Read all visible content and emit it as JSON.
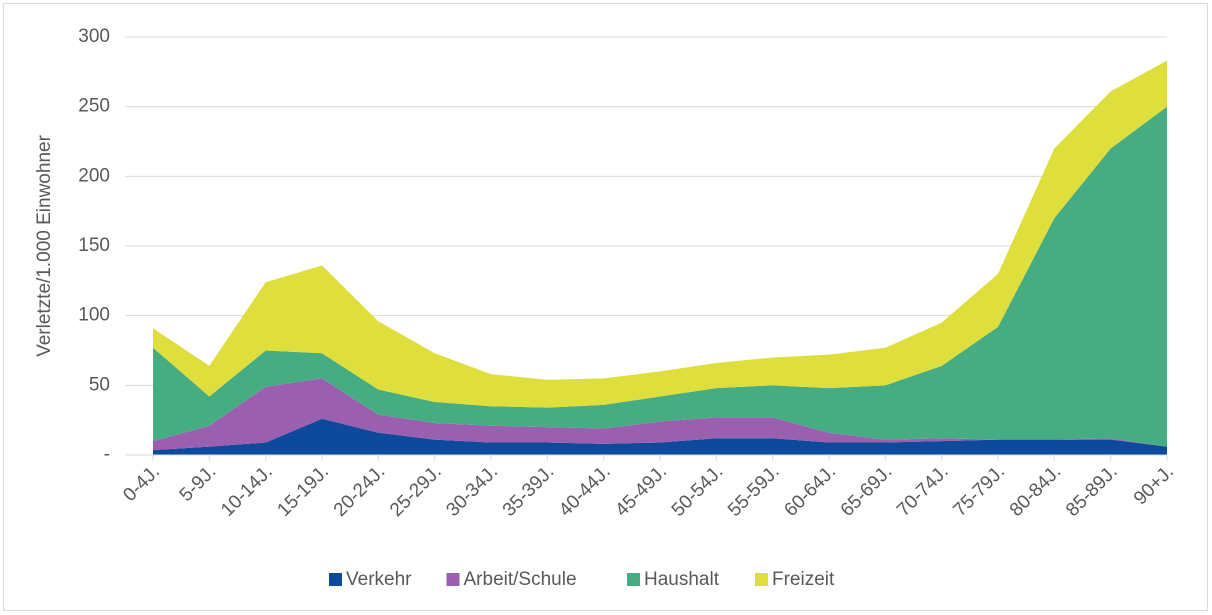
{
  "chart_data": {
    "type": "stacked_area",
    "y_label": "Verletzte/1.000 Einwohner",
    "categories": [
      "0-4J.",
      "5-9J.",
      "10-14J.",
      "15-19J.",
      "20-24J.",
      "25-29J.",
      "30-34J.",
      "35-39J.",
      "40-44J.",
      "45-49J.",
      "50-54J.",
      "55-59J.",
      "60-64J.",
      "65-69J.",
      "70-74J.",
      "75-79J.",
      "80-84J.",
      "85-89J.",
      "90+J."
    ],
    "series": [
      {
        "name": "Verkehr",
        "color": "#0d4a9c",
        "values": [
          3.5,
          6,
          9,
          26,
          16,
          11,
          9,
          9,
          8,
          9,
          12,
          12,
          9,
          9,
          10,
          11,
          11,
          11,
          6
        ]
      },
      {
        "name": "Arbeit/Schule",
        "color": "#9b5fb0",
        "values": [
          6.5,
          15,
          40,
          29,
          13,
          12,
          12,
          11,
          11,
          15,
          15,
          15,
          7,
          2,
          2,
          0,
          0,
          1,
          0
        ]
      },
      {
        "name": "Haushalt",
        "color": "#46ad83",
        "values": [
          67,
          21,
          26,
          18,
          18,
          15,
          14,
          14,
          17,
          18,
          21,
          23,
          32,
          39,
          52,
          81,
          159,
          208,
          244
        ]
      },
      {
        "name": "Freizeit",
        "color": "#dede3c",
        "values": [
          14,
          22,
          49,
          63,
          49,
          35,
          23,
          20,
          19,
          18,
          18,
          20,
          24,
          27,
          31,
          38,
          50,
          41,
          33
        ]
      }
    ],
    "ylim": [
      0,
      300
    ],
    "yticks": [
      {
        "value": 0,
        "label": "-"
      },
      50,
      100,
      150,
      200,
      250,
      300
    ],
    "grid": true,
    "legend": "bottom"
  }
}
